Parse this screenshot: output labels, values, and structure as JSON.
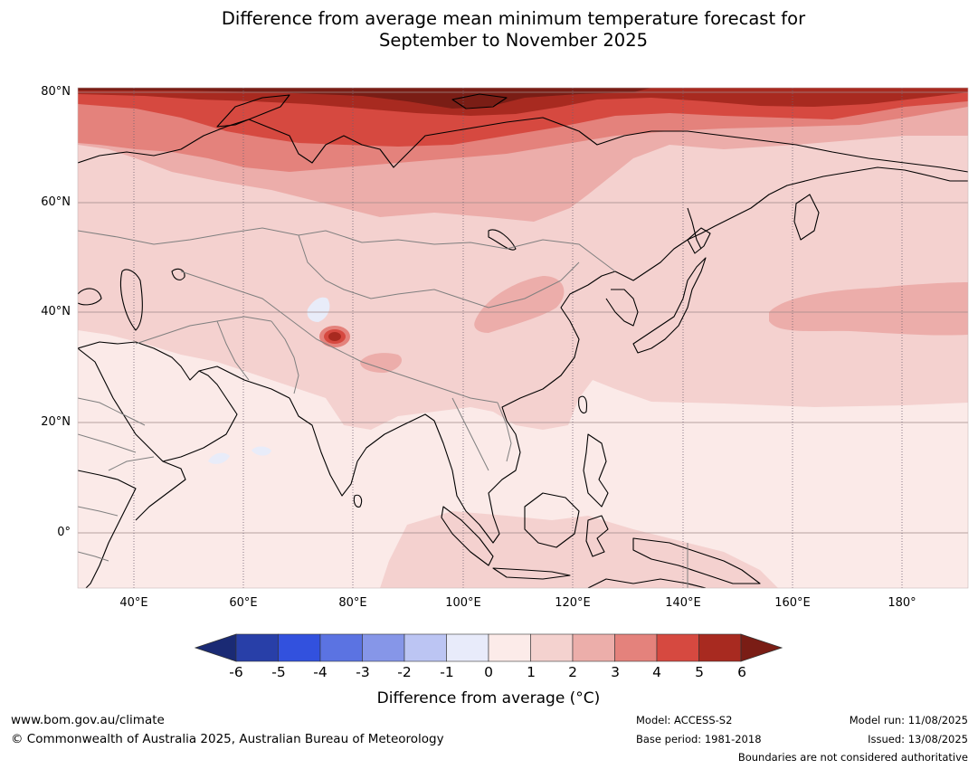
{
  "title": {
    "line1": "Difference from average mean minimum temperature forecast for",
    "line2": "September to November 2025"
  },
  "map": {
    "region": "Asia",
    "lat_labels": [
      "80°N",
      "60°N",
      "40°N",
      "20°N",
      "0°"
    ],
    "lon_labels": [
      "40°E",
      "60°E",
      "80°E",
      "100°E",
      "120°E",
      "140°E",
      "160°E",
      "180°"
    ],
    "ocean_anomaly_range": "0 to 1",
    "hotspot_note": "strongest warm anomaly over Arctic coast of Siberia (5 to 6+)",
    "colors": {
      "c0_1": "#fbeae8",
      "c1_2": "#f4d1cf",
      "c2_3": "#ecadaa",
      "c3_4": "#e4827c",
      "c4_5": "#d64940",
      "c5_6": "#a82a20",
      "c6p": "#7a1d15",
      "cm1_0": "#e8ecf9"
    }
  },
  "colorbar": {
    "tick_labels": [
      "-6",
      "-5",
      "-4",
      "-3",
      "-2",
      "-1",
      "0",
      "1",
      "2",
      "3",
      "4",
      "5",
      "6"
    ],
    "colors": [
      "#1a2a74",
      "#283fa8",
      "#3251de",
      "#5b73e2",
      "#8696e8",
      "#bcc5f3",
      "#e8ebfa",
      "#fcebe9",
      "#f4d2cf",
      "#ecaeaa",
      "#e4827c",
      "#d64940",
      "#a82a20",
      "#7a1d15"
    ],
    "title": "Difference from average (°C)"
  },
  "footer": {
    "website": "www.bom.gov.au/climate",
    "copyright": "© Commonwealth of Australia 2025, Australian Bureau of Meteorology",
    "model": "Model: ACCESS-S2",
    "base_period": "Base period: 1981-2018",
    "model_run": "Model run: 11/08/2025",
    "issued": "Issued: 13/08/2025",
    "disclaimer": "Boundaries are not considered authoritative"
  }
}
